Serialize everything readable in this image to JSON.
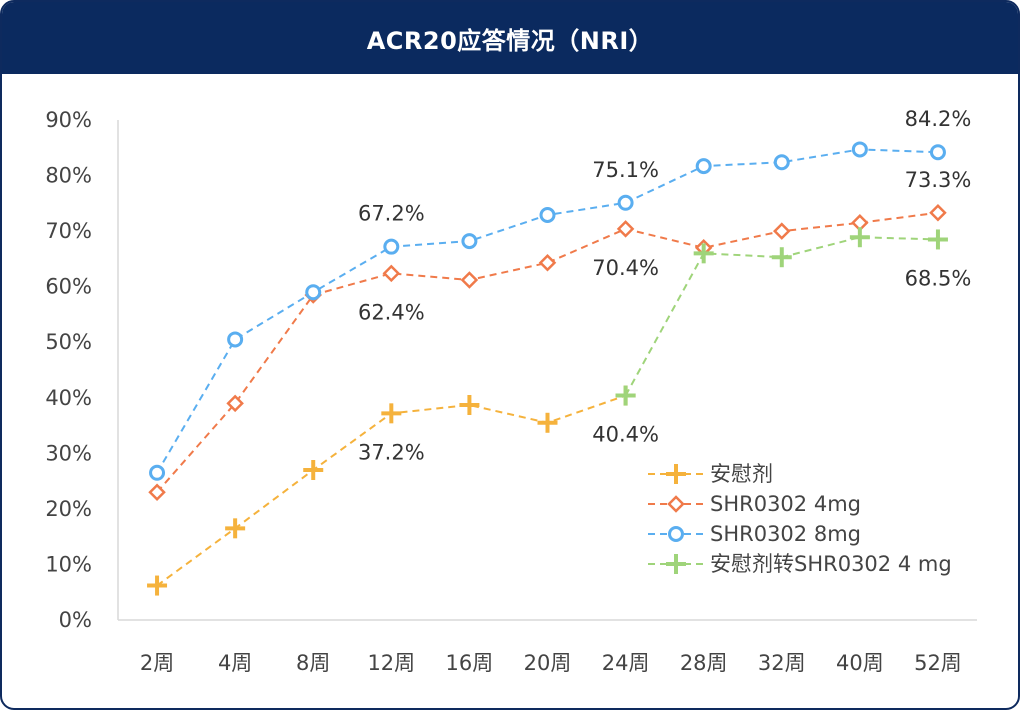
{
  "chart_data": {
    "type": "line",
    "title": "ACR20应答情况（NRI）",
    "categories": [
      "2周",
      "4周",
      "8周",
      "12周",
      "16周",
      "20周",
      "24周",
      "28周",
      "32周",
      "40周",
      "52周"
    ],
    "ylim": [
      0,
      90
    ],
    "yticks": [
      "0%",
      "10%",
      "20%",
      "30%",
      "40%",
      "50%",
      "60%",
      "70%",
      "80%",
      "90%"
    ],
    "grid": false,
    "legend_position": "bottom-right",
    "series": [
      {
        "name": "安慰剂",
        "marker": "plus",
        "color": "#f5b23c",
        "values": [
          6.2,
          16.5,
          27,
          37.2,
          38.7,
          35.5,
          40.4,
          null,
          null,
          null,
          null
        ]
      },
      {
        "name": "SHR0302 4mg",
        "marker": "diamond",
        "color": "#f07a4a",
        "values": [
          23,
          39,
          58.5,
          62.4,
          61.2,
          64.3,
          70.4,
          67,
          70,
          71.5,
          73.3
        ]
      },
      {
        "name": "SHR0302 8mg",
        "marker": "circle",
        "color": "#5aaef0",
        "values": [
          26.5,
          50.5,
          59,
          67.2,
          68.2,
          72.9,
          75.1,
          81.7,
          82.4,
          84.7,
          84.2
        ]
      },
      {
        "name": "安慰剂转SHR0302 4 mg",
        "marker": "plus",
        "color": "#9fd47a",
        "values": [
          null,
          null,
          null,
          null,
          null,
          null,
          40.4,
          66,
          65.3,
          68.9,
          68.5
        ]
      }
    ],
    "annotations": [
      {
        "text": "67.2%",
        "series": 2,
        "index": 3,
        "pos": "above"
      },
      {
        "text": "62.4%",
        "series": 1,
        "index": 3,
        "pos": "below"
      },
      {
        "text": "37.2%",
        "series": 0,
        "index": 3,
        "pos": "below"
      },
      {
        "text": "75.1%",
        "series": 2,
        "index": 6,
        "pos": "above"
      },
      {
        "text": "70.4%",
        "series": 1,
        "index": 6,
        "pos": "below"
      },
      {
        "text": "40.4%",
        "series": 0,
        "index": 6,
        "pos": "below"
      },
      {
        "text": "84.2%",
        "series": 2,
        "index": 10,
        "pos": "above"
      },
      {
        "text": "73.3%",
        "series": 1,
        "index": 10,
        "pos": "above"
      },
      {
        "text": "68.5%",
        "series": 3,
        "index": 10,
        "pos": "below"
      }
    ]
  }
}
